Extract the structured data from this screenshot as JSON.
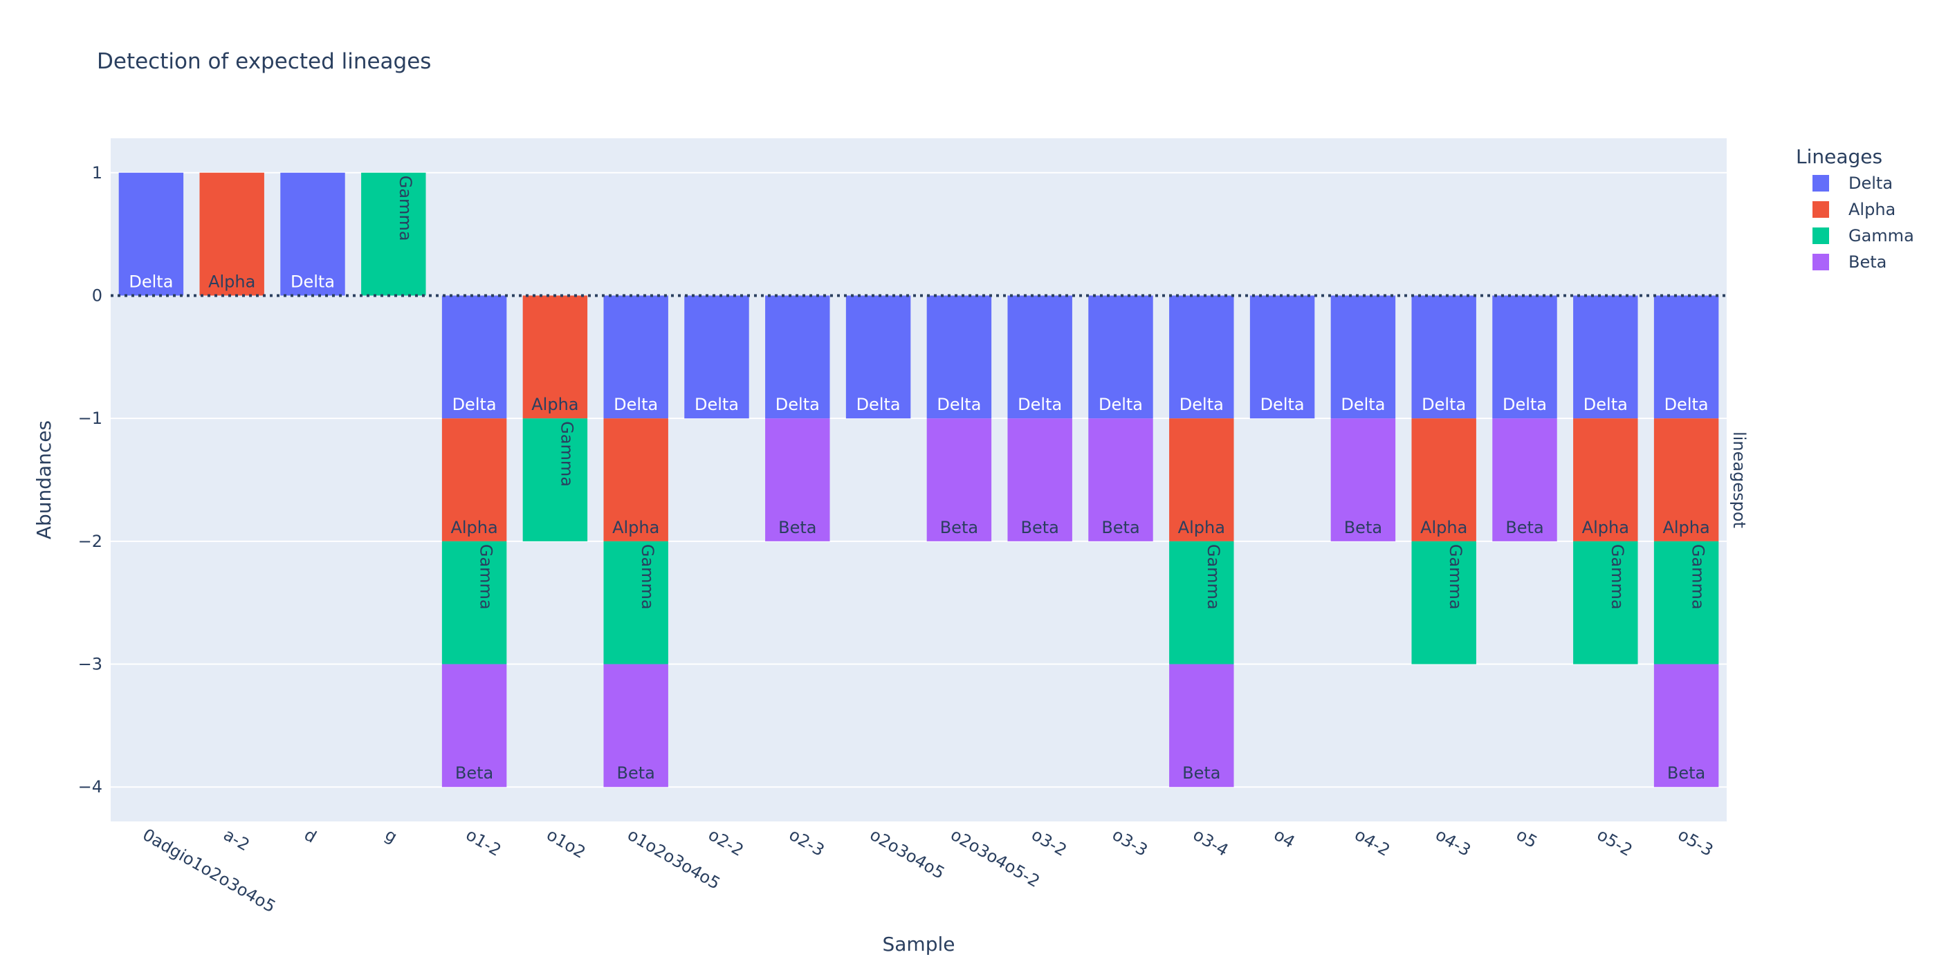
{
  "chart_data": {
    "type": "bar",
    "title": "Detection of expected lineages",
    "xlabel": "Sample",
    "ylabel": "Abundances",
    "facet_label": "lineagespot",
    "ylim": [
      -4.28,
      1.28
    ],
    "yticks": [
      1,
      0,
      -1,
      -2,
      -3,
      -4
    ],
    "ytick_labels": [
      "1",
      "0",
      "−1",
      "−2",
      "−3",
      "−4"
    ],
    "grid": true,
    "zero_line": "dotted",
    "legend": {
      "title": "Lineages",
      "placement": "top-right"
    },
    "categories": [
      "0adgio1o2o3o4o5",
      "a-2",
      "d",
      "g",
      "o1-2",
      "o1o2",
      "o1o2o3o4o5",
      "o2-2",
      "o2-3",
      "o2o3o4o5",
      "o2o3o4o5-2",
      "o3-2",
      "o3-3",
      "o3-4",
      "o4",
      "o4-2",
      "o4-3",
      "o5",
      "o5-2",
      "o5-3"
    ],
    "series": [
      {
        "name": "Delta",
        "color": "#636efa",
        "label_color": "#ffffff",
        "label_rotated": false,
        "values": [
          1,
          0,
          1,
          0,
          -1,
          0,
          -1,
          -1,
          -1,
          -1,
          -1,
          -1,
          -1,
          -1,
          -1,
          -1,
          -1,
          -1,
          -1,
          -1
        ]
      },
      {
        "name": "Alpha",
        "color": "#ef553b",
        "label_color": "#2a3f5f",
        "label_rotated": false,
        "values": [
          0,
          1,
          0,
          0,
          -1,
          -1,
          -1,
          0,
          0,
          0,
          0,
          0,
          0,
          -1,
          0,
          0,
          -1,
          0,
          -1,
          -1
        ]
      },
      {
        "name": "Gamma",
        "color": "#00cc96",
        "label_color": "#2a3f5f",
        "label_rotated": true,
        "values": [
          0,
          0,
          0,
          1,
          -1,
          -1,
          -1,
          0,
          0,
          0,
          0,
          0,
          0,
          -1,
          0,
          0,
          -1,
          0,
          -1,
          -1
        ]
      },
      {
        "name": "Beta",
        "color": "#ab63fa",
        "label_color": "#2a3f5f",
        "label_rotated": false,
        "values": [
          0,
          0,
          0,
          0,
          -1,
          0,
          -1,
          0,
          -1,
          0,
          -1,
          -1,
          -1,
          -1,
          0,
          -1,
          0,
          -1,
          0,
          -1
        ]
      }
    ]
  }
}
